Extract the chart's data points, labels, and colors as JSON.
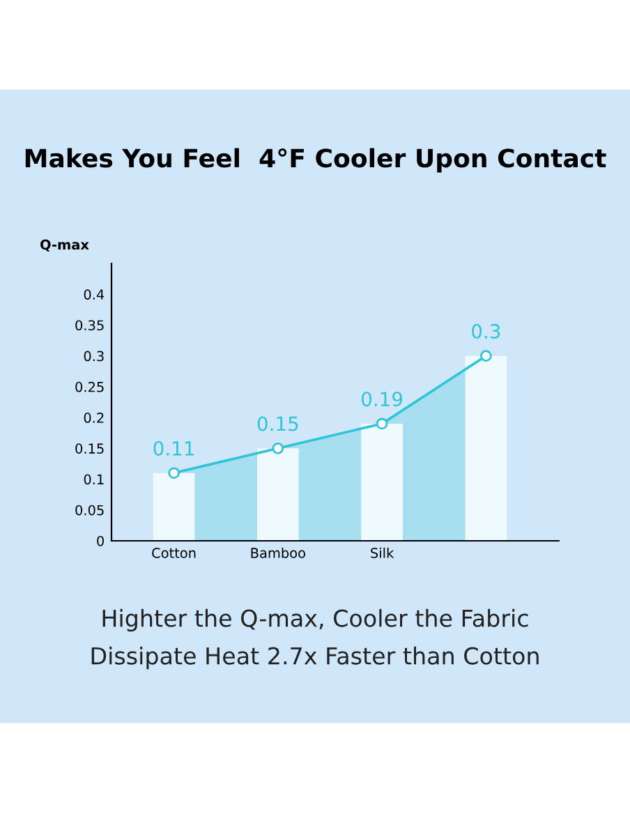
{
  "chart_data": {
    "type": "bar",
    "title": "Makes You Feel  4°F Cooler Upon Contact",
    "ylabel": "Q-max",
    "categories": [
      "Cotton",
      "Bamboo",
      "Silk",
      null
    ],
    "series": [
      {
        "color": "#eefaff",
        "values": [
          0.11,
          0.15,
          0.19,
          0.3
        ]
      },
      {
        "type": "area",
        "color": "#2fc4d6",
        "values": [
          0.11,
          0.15,
          0.19,
          0.3
        ],
        "value_labels": [
          "0.11",
          "0.15",
          "0.19",
          "0.3"
        ]
      }
    ],
    "marker": "circle",
    "ylim": [
      0,
      0.45
    ],
    "yticks": [
      0,
      0.05,
      0.1,
      0.15,
      0.2,
      0.25,
      0.3,
      0.35,
      0.4
    ],
    "annotations": [
      "Highter the Q-max, Cooler the Fabric",
      "Dissipate Heat 2.7x Faster than Cotton"
    ]
  }
}
